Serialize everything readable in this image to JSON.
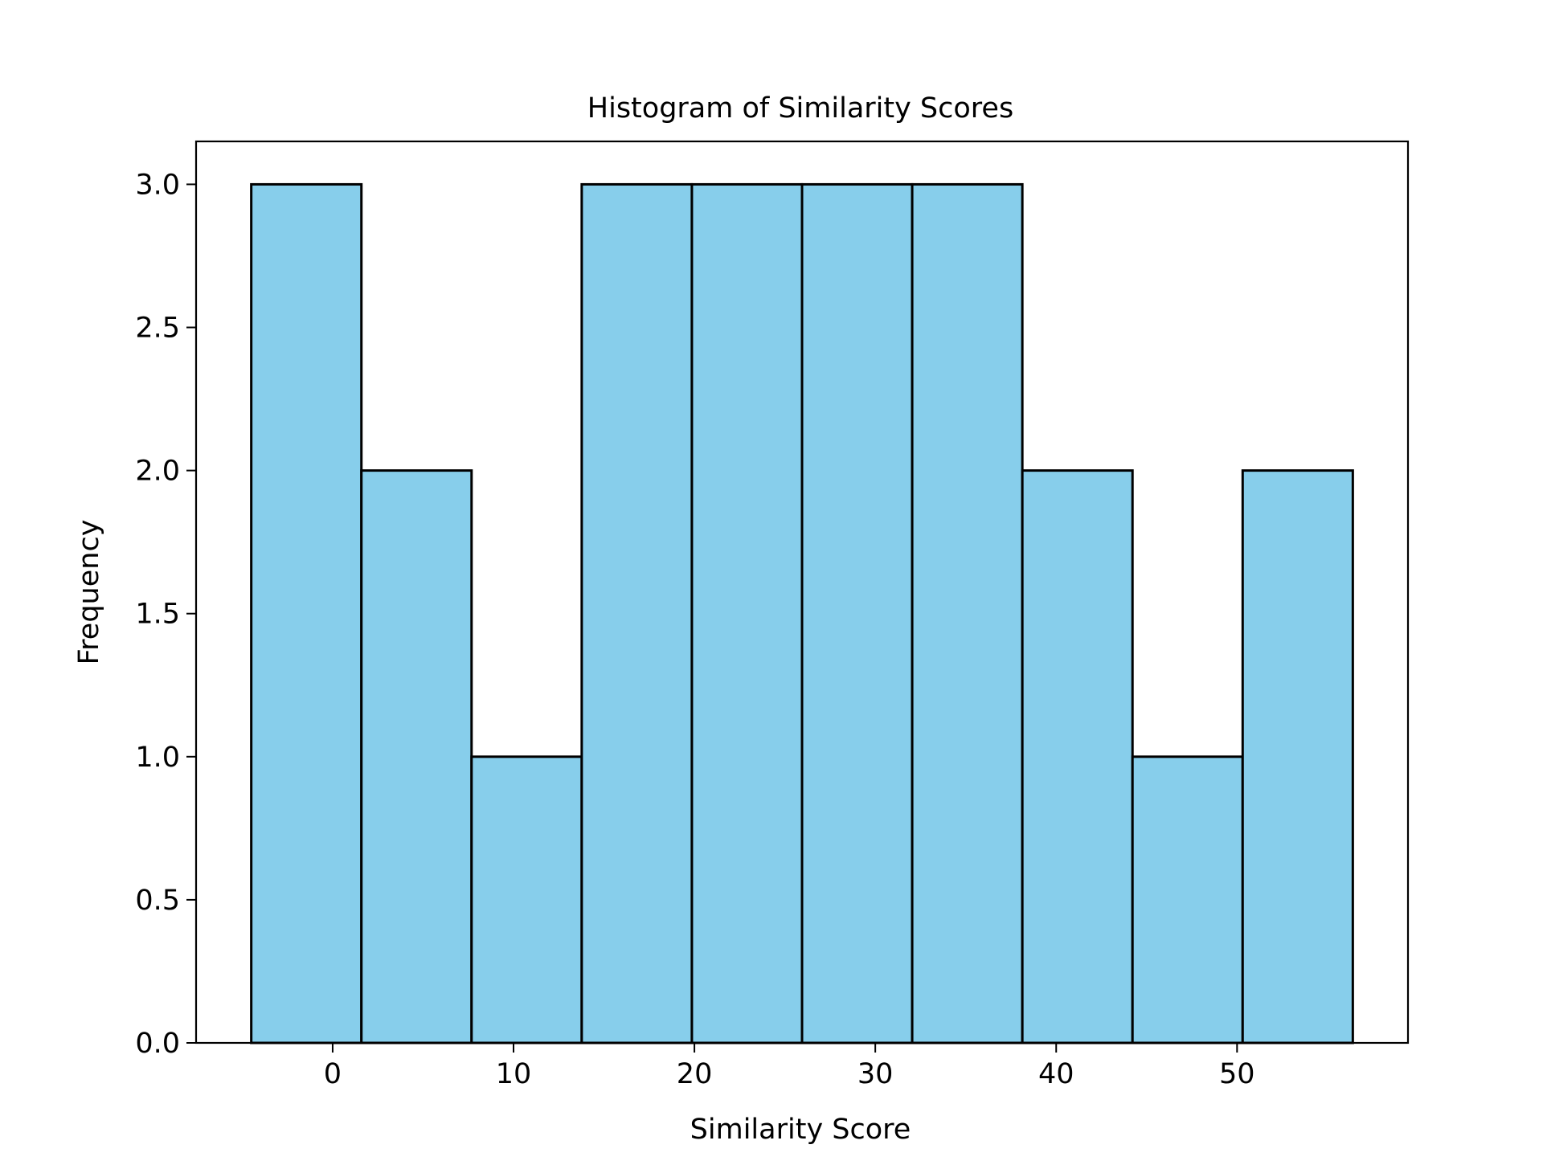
{
  "chart_data": {
    "type": "bar",
    "title": "Histogram of Similarity Scores",
    "xlabel": "Similarity Score",
    "ylabel": "Frequency",
    "bin_edges": [
      -4.5,
      1.59,
      7.68,
      13.77,
      19.86,
      25.95,
      32.04,
      38.13,
      44.22,
      50.31,
      56.4
    ],
    "values": [
      3,
      2,
      1,
      3,
      3,
      3,
      3,
      2,
      1,
      2
    ],
    "xlim": [
      -7.55,
      59.45
    ],
    "ylim": [
      0,
      3.15
    ],
    "xticks": [
      0,
      10,
      20,
      30,
      40,
      50
    ],
    "xtick_labels": [
      "0",
      "10",
      "20",
      "30",
      "40",
      "50"
    ],
    "yticks": [
      0,
      0.5,
      1,
      1.5,
      2,
      2.5,
      3
    ],
    "ytick_labels": [
      "0.0",
      "0.5",
      "1.0",
      "1.5",
      "2.0",
      "2.5",
      "3.0"
    ],
    "bar_color": "#87CEEB",
    "edge_color": "#000000",
    "grid": false,
    "legend": "none"
  }
}
